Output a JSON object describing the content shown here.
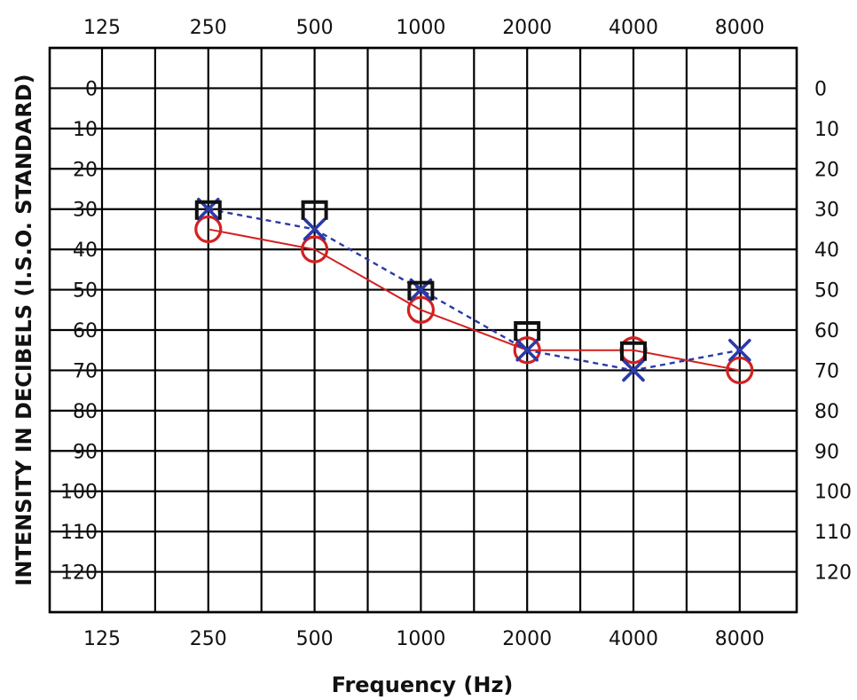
{
  "chart_data": {
    "type": "line",
    "xlabel": "Frequency (Hz)",
    "ylabel": "INTENSITY IN DECIBELS (I.S.O. STANDARD)",
    "x_ticks": [
      "125",
      "250",
      "500",
      "1000",
      "2000",
      "4000",
      "8000"
    ],
    "y_ticks": [
      "0",
      "10",
      "20",
      "30",
      "40",
      "50",
      "60",
      "70",
      "80",
      "90",
      "100",
      "110",
      "120"
    ],
    "ylim": [
      -10,
      130
    ],
    "y_inverted": true,
    "x_scale": "log2 (octave spacing with half-octave grid lines)",
    "grid": true,
    "series": [
      {
        "marker": "circle",
        "color": "#d42020",
        "line_style": "solid",
        "x": [
          250,
          500,
          1000,
          2000,
          4000,
          8000
        ],
        "y": [
          35,
          40,
          55,
          65,
          65,
          70
        ]
      },
      {
        "marker": "x",
        "color": "#2a3aa8",
        "line_style": "dashed",
        "x": [
          250,
          500,
          1000,
          2000,
          4000,
          8000
        ],
        "y": [
          30,
          35,
          50,
          65,
          70,
          65
        ]
      },
      {
        "marker": "bracket",
        "color": "#111111",
        "line_style": "none",
        "x": [
          250,
          500,
          1000,
          2000,
          4000
        ],
        "y": [
          30,
          30,
          50,
          60,
          65
        ]
      }
    ]
  }
}
